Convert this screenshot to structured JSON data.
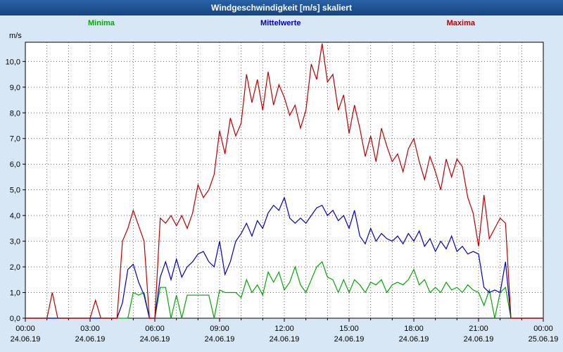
{
  "title": "Windgeschwindigkeit [m/s] skaliert",
  "legend": {
    "minima": "Minima",
    "mittelwerte": "Mittelwerte",
    "maxima": "Maxima"
  },
  "colors": {
    "titlebar": "#16447f",
    "background": "#d8e7f6",
    "plot_background": "#ffffff",
    "grid": "#606060",
    "minima": "#00a800",
    "mittelwerte": "#0000bb",
    "maxima": "#bb0000"
  },
  "chart_data": {
    "type": "line",
    "title": "Windgeschwindigkeit [m/s] skaliert",
    "unit_label": "m/s",
    "x_interval_minutes": 15,
    "xlim_hours": [
      0,
      24
    ],
    "ylim": [
      0,
      10.75
    ],
    "grid": true,
    "y_tick_labels": [
      "0,0",
      "1,0",
      "2,0",
      "3,0",
      "4,0",
      "5,0",
      "6,0",
      "7,0",
      "8,0",
      "9,0",
      "10,0"
    ],
    "x_ticks": [
      {
        "hour": 0,
        "time": "00:00",
        "date": "24.06.19"
      },
      {
        "hour": 3,
        "time": "03:00",
        "date": "24.06.19"
      },
      {
        "hour": 6,
        "time": "06:00",
        "date": "24.06.19"
      },
      {
        "hour": 9,
        "time": "09:00",
        "date": "24.06.19"
      },
      {
        "hour": 12,
        "time": "12:00",
        "date": "24.06.19"
      },
      {
        "hour": 15,
        "time": "15:00",
        "date": "24.06.19"
      },
      {
        "hour": 18,
        "time": "18:00",
        "date": "24.06.19"
      },
      {
        "hour": 21,
        "time": "21:00",
        "date": "24.06.19"
      },
      {
        "hour": 24,
        "time": "00:00",
        "date": "25.06.19"
      }
    ],
    "series": [
      {
        "name": "Minima",
        "color": "#00a800",
        "values": [
          0,
          0,
          0,
          0,
          0,
          0,
          0,
          0,
          0,
          0,
          0,
          0,
          0,
          0,
          0,
          0,
          0,
          0,
          0,
          0,
          1.0,
          0.9,
          1.0,
          0,
          0,
          1.2,
          1.2,
          0,
          0.9,
          0,
          0.9,
          0.9,
          0.9,
          0.9,
          0.9,
          0,
          1.1,
          1.0,
          1.0,
          1.0,
          0.8,
          1.5,
          1.0,
          1.3,
          0.9,
          1.8,
          1.4,
          1.8,
          1.1,
          1.4,
          2.0,
          1.3,
          1.0,
          1.5,
          2.0,
          2.2,
          1.6,
          1.5,
          1.0,
          1.5,
          1.0,
          1.5,
          1.3,
          1.0,
          1.4,
          1.3,
          1.5,
          1.0,
          1.3,
          1.4,
          1.3,
          1.5,
          1.9,
          1.3,
          1.5,
          1.0,
          1.2,
          1.0,
          1.4,
          1.1,
          1.2,
          1.0,
          1.3,
          1.1,
          1.0,
          0.5,
          1.1,
          0,
          1.0,
          1.2,
          0,
          0,
          0,
          0,
          0,
          0,
          0
        ]
      },
      {
        "name": "Mittelwerte",
        "color": "#0000bb",
        "values": [
          0,
          0,
          0,
          0,
          0,
          0,
          0,
          0,
          0,
          0,
          0,
          0,
          0,
          0,
          0,
          0,
          0,
          0,
          0.6,
          1.9,
          2.1,
          1.4,
          0.9,
          0,
          0,
          1.6,
          2.2,
          1.5,
          2.3,
          1.6,
          2.0,
          2.2,
          2.5,
          2.6,
          2.2,
          2.0,
          3.0,
          1.7,
          2.2,
          3.0,
          3.3,
          3.7,
          3.2,
          3.8,
          3.5,
          4.1,
          4.4,
          4.2,
          4.7,
          3.9,
          3.7,
          3.9,
          3.7,
          4.0,
          4.3,
          4.4,
          4.0,
          4.2,
          3.8,
          4.0,
          3.5,
          4.2,
          3.2,
          2.9,
          3.5,
          3.0,
          3.3,
          3.1,
          3.0,
          3.2,
          2.9,
          3.3,
          3.0,
          3.4,
          2.8,
          3.1,
          2.6,
          3.0,
          2.7,
          3.2,
          2.6,
          2.8,
          2.5,
          2.6,
          2.5,
          1.2,
          1.0,
          1.1,
          1.0,
          2.2,
          0,
          0,
          0,
          0,
          0,
          0,
          0
        ]
      },
      {
        "name": "Maxima",
        "color": "#bb0000",
        "values": [
          0,
          0,
          0,
          0,
          0,
          1.0,
          0,
          0,
          0,
          0,
          0,
          0,
          0,
          0.7,
          0,
          0,
          0,
          0,
          3.0,
          3.5,
          4.2,
          3.6,
          3.0,
          0,
          0,
          3.9,
          3.7,
          4.0,
          3.6,
          4.0,
          3.5,
          4.1,
          5.2,
          4.7,
          5.0,
          5.6,
          7.3,
          6.4,
          7.8,
          7.1,
          7.6,
          9.5,
          8.4,
          9.3,
          8.1,
          9.6,
          8.3,
          9.1,
          8.6,
          7.9,
          8.3,
          7.4,
          8.1,
          9.9,
          9.3,
          10.7,
          9.2,
          9.5,
          8.1,
          8.7,
          7.2,
          8.3,
          7.4,
          6.3,
          7.1,
          6.1,
          7.4,
          6.7,
          6.1,
          6.4,
          5.7,
          6.6,
          7.0,
          6.1,
          5.4,
          6.3,
          5.7,
          5.0,
          6.2,
          5.5,
          6.2,
          5.9,
          4.7,
          4.1,
          2.8,
          4.8,
          3.1,
          3.5,
          3.9,
          3.7,
          0,
          0,
          0,
          0,
          0,
          0,
          0
        ]
      }
    ]
  }
}
